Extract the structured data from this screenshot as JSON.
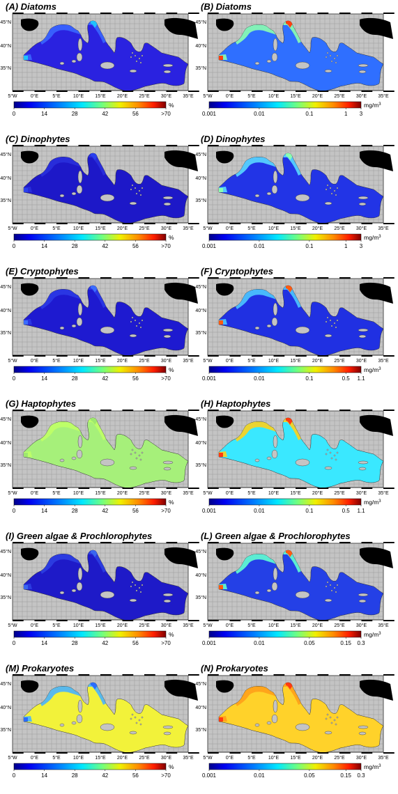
{
  "lon_labels": [
    "5°W",
    "0°E",
    "5°E",
    "10°E",
    "15°E",
    "20°E",
    "25°E",
    "30°E",
    "35°E"
  ],
  "lat_labels": [
    "35°N",
    "40°N",
    "45°N"
  ],
  "panels": [
    {
      "id": "A",
      "title": "(A) Diatoms",
      "scale": "percent",
      "fill": "#2a22e0",
      "shelf": "#3a66ff",
      "hot": "#1fc2ff",
      "cbar_ticks": [
        "0",
        "14",
        "28",
        "42",
        "56",
        ">70"
      ],
      "unit": "%"
    },
    {
      "id": "B",
      "title": "(B) Diatoms",
      "scale": "conc",
      "fill": "#2f6fff",
      "shelf": "#8cffb0",
      "hot": "#ff4010",
      "cbar_ticks": [
        "0.001",
        "0.01",
        "0.1",
        "1",
        "3"
      ],
      "unit": "mg/m",
      "unit_sup": "3"
    },
    {
      "id": "C",
      "title": "(C) Dinophytes",
      "scale": "percent",
      "fill": "#1d18c8",
      "shelf": "#2a30dc",
      "hot": "#2a40ee",
      "cbar_ticks": [
        "0",
        "14",
        "28",
        "42",
        "56",
        ">70"
      ],
      "unit": "%"
    },
    {
      "id": "D",
      "title": "(D) Dinophytes",
      "scale": "conc",
      "fill": "#2234e6",
      "shelf": "#5ad8ff",
      "hot": "#8affb0",
      "cbar_ticks": [
        "0.001",
        "0.01",
        "0.1",
        "1",
        "3"
      ],
      "unit": "mg/m",
      "unit_sup": "3"
    },
    {
      "id": "E",
      "title": "(E) Cryptophytes",
      "scale": "percent",
      "fill": "#1e1ad0",
      "shelf": "#2b3ae4",
      "hot": "#3b6cff",
      "cbar_ticks": [
        "0",
        "14",
        "28",
        "42",
        "56",
        ">70"
      ],
      "unit": "%"
    },
    {
      "id": "F",
      "title": "(F) Cryptophytes",
      "scale": "conc",
      "fill": "#2030e2",
      "shelf": "#4cc8ff",
      "hot": "#ff5a10",
      "cbar_ticks": [
        "0.001",
        "0.01",
        "0.1",
        "0.5",
        "1.1"
      ],
      "unit": "mg/m",
      "unit_sup": "3"
    },
    {
      "id": "G",
      "title": "(G) Haptophytes",
      "scale": "percent",
      "fill": "#a6f07a",
      "shelf": "#c0ff66",
      "hot": "#9ee86e",
      "cbar_ticks": [
        "0",
        "14",
        "28",
        "42",
        "56",
        ">70"
      ],
      "unit": "%"
    },
    {
      "id": "H",
      "title": "(H) Haptophytes",
      "scale": "conc",
      "fill": "#3ae8ff",
      "shelf": "#ffd21a",
      "hot": "#ff3a10",
      "cbar_ticks": [
        "0.001",
        "0.01",
        "0.1",
        "0.5",
        "1.1"
      ],
      "unit": "mg/m",
      "unit_sup": "3"
    },
    {
      "id": "I",
      "title": "(I) Green algae & Prochlorophytes",
      "scale": "percent",
      "fill": "#1e1ac8",
      "shelf": "#2c3fe2",
      "hot": "#3a66f0",
      "cbar_ticks": [
        "0",
        "14",
        "28",
        "42",
        "56",
        ">70"
      ],
      "unit": "%"
    },
    {
      "id": "L",
      "title": "(L) Green algae & Prochlorophytes",
      "scale": "conc",
      "fill": "#2440e6",
      "shelf": "#62ffd0",
      "hot": "#ff5a10",
      "cbar_ticks": [
        "0.001",
        "0.01",
        "0.05",
        "0.15",
        "0.3"
      ],
      "unit": "mg/m",
      "unit_sup": "3"
    },
    {
      "id": "M",
      "title": "(M) Prokaryotes",
      "scale": "percent",
      "fill": "#f2f23a",
      "shelf": "#48b2ff",
      "hot": "#2a6cff",
      "cbar_ticks": [
        "0",
        "14",
        "28",
        "42",
        "56",
        ">70"
      ],
      "unit": "%"
    },
    {
      "id": "N",
      "title": "(N) Prokaryotes",
      "scale": "conc",
      "fill": "#ffd22a",
      "shelf": "#ffa01a",
      "hot": "#ff3a10",
      "cbar_ticks": [
        "0.001",
        "0.01",
        "0.05",
        "0.15",
        "0.3"
      ],
      "unit": "mg/m",
      "unit_sup": "3"
    }
  ]
}
